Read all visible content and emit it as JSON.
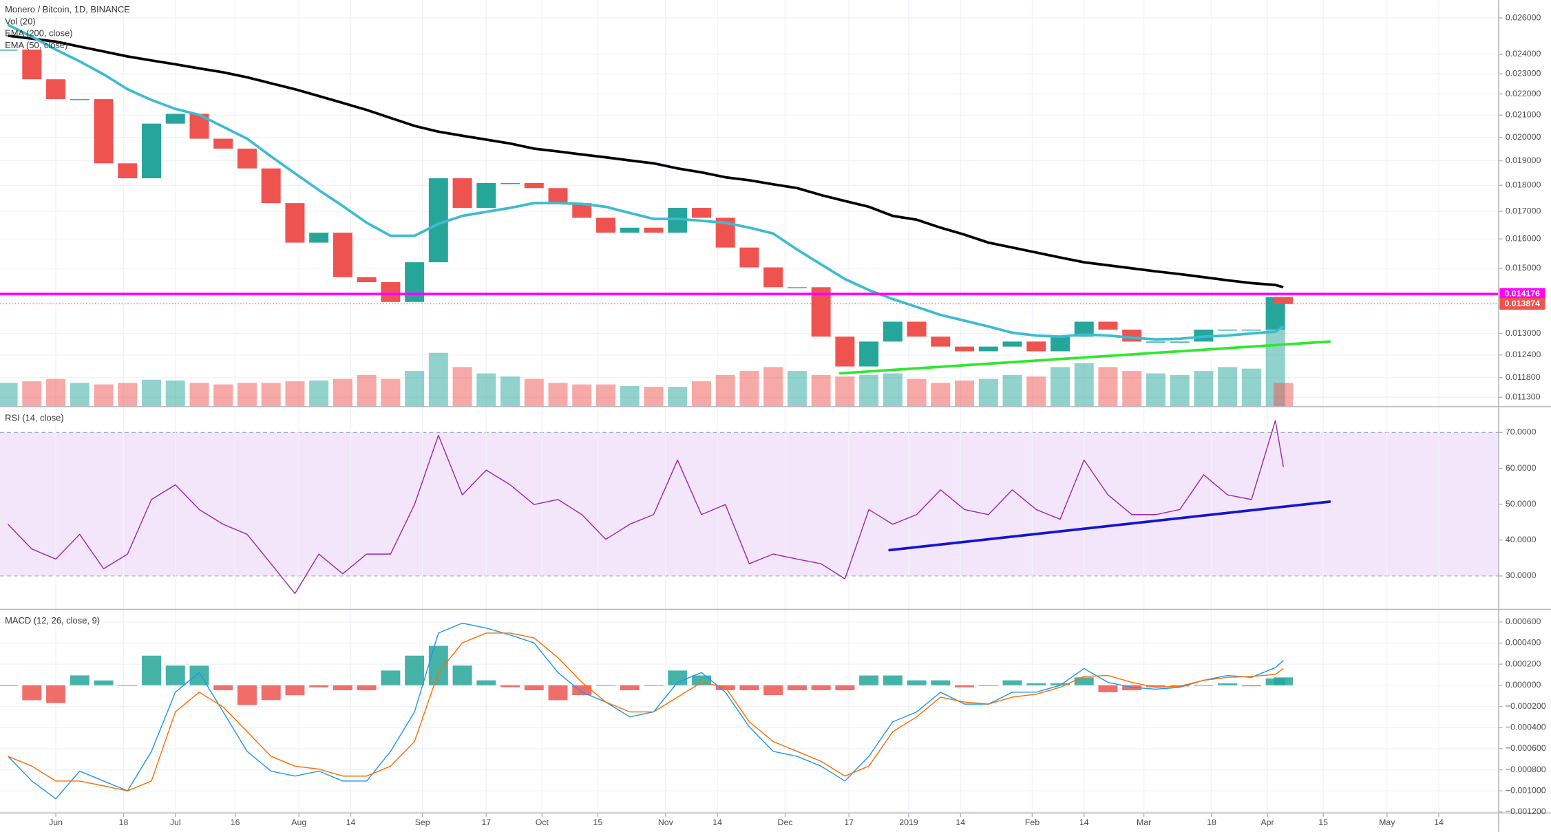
{
  "chart_data": [
    {
      "type": "line",
      "title": "Monero / Bitcoin, 1D, BINANCE",
      "log": true,
      "grid": true,
      "x": [
        -12,
        -6,
        0,
        6,
        12,
        18,
        24,
        30,
        36,
        42,
        48,
        54,
        60,
        66,
        72,
        78,
        84,
        90,
        96,
        102,
        108,
        114,
        120,
        126,
        132,
        138,
        144,
        150,
        156,
        162,
        168,
        174,
        180,
        186,
        192,
        198,
        204,
        210,
        216,
        222,
        228,
        234,
        240,
        246,
        252,
        258,
        264,
        270,
        276,
        282,
        288,
        294,
        300,
        306,
        308
      ],
      "xlim": [
        -14,
        362
      ],
      "ylim": [
        0.01107,
        0.02703
      ],
      "yticks": [
        {
          "value": 0.026,
          "label": "0.026000"
        },
        {
          "value": 0.024,
          "label": "0.024000"
        },
        {
          "value": 0.023,
          "label": "0.023000"
        },
        {
          "value": 0.022,
          "label": "0.022000"
        },
        {
          "value": 0.021,
          "label": "0.021000"
        },
        {
          "value": 0.02,
          "label": "0.020000"
        },
        {
          "value": 0.019,
          "label": "0.019000"
        },
        {
          "value": 0.018,
          "label": "0.018000"
        },
        {
          "value": 0.017,
          "label": "0.017000"
        },
        {
          "value": 0.016,
          "label": "0.016000"
        },
        {
          "value": 0.015,
          "label": "0.015000"
        },
        {
          "value": 0.013,
          "label": "0.013000"
        },
        {
          "value": 0.0124,
          "label": "0.012400"
        },
        {
          "value": 0.0118,
          "label": "0.011800"
        },
        {
          "value": 0.0113,
          "label": "0.011300"
        }
      ],
      "series": [
        {
          "up_color": "#26a69a",
          "down_color": "#ef5350",
          "values": [
            0.02425,
            0.02272,
            0.02175,
            0.02175,
            0.01889,
            0.01828,
            0.02061,
            0.02106,
            0.01994,
            0.01951,
            0.01868,
            0.01731,
            0.01587,
            0.01622,
            0.01471,
            0.01455,
            0.01393,
            0.0152,
            0.01828,
            0.01713,
            0.01809,
            0.01809,
            0.01789,
            0.01731,
            0.01676,
            0.01622,
            0.0164,
            0.01622,
            0.01713,
            0.01676,
            0.0157,
            0.01503,
            0.01439,
            0.01439,
            0.01291,
            0.01209,
            0.01277,
            0.01334,
            0.01291,
            0.01263,
            0.0125,
            0.01263,
            0.01277,
            0.0125,
            0.01291,
            0.01334,
            0.01311,
            0.01277,
            0.01277,
            0.01277,
            0.01311,
            0.01311,
            0.01311,
            0.01408,
            0.01387
          ]
        },
        {
          "name": "EMA (200, close)",
          "color": "#000000",
          "values": [
            0.025,
            0.02484,
            0.02468,
            0.02441,
            0.02415,
            0.02389,
            0.02368,
            0.02348,
            0.02327,
            0.02307,
            0.02282,
            0.02252,
            0.02223,
            0.0219,
            0.02157,
            0.02124,
            0.02087,
            0.02051,
            0.02025,
            0.02007,
            0.0199,
            0.01973,
            0.01951,
            0.01939,
            0.01926,
            0.01914,
            0.01901,
            0.01889,
            0.01868,
            0.01852,
            0.01832,
            0.0182,
            0.01804,
            0.01789,
            0.01762,
            0.01739,
            0.01717,
            0.01683,
            0.01669,
            0.0164,
            0.01615,
            0.01587,
            0.0157,
            0.01553,
            0.01536,
            0.0152,
            0.0151,
            0.015,
            0.0149,
            0.01481,
            0.01471,
            0.01461,
            0.01452,
            0.01446,
            0.01439
          ]
        },
        {
          "name": "EMA (50, close)",
          "color": "#3cbcd0",
          "values": [
            0.02561,
            0.02495,
            0.02425,
            0.02363,
            0.02297,
            0.02223,
            0.02171,
            0.02129,
            0.02101,
            0.02047,
            0.01994,
            0.01918,
            0.01848,
            0.01781,
            0.0172,
            0.01658,
            0.01611,
            0.01611,
            0.01654,
            0.01683,
            0.01698,
            0.01713,
            0.01731,
            0.01731,
            0.01728,
            0.01717,
            0.01694,
            0.01672,
            0.01672,
            0.01665,
            0.01658,
            0.0164,
            0.01619,
            0.01563,
            0.01513,
            0.01465,
            0.0143,
            0.01402,
            0.01378,
            0.01354,
            0.01337,
            0.0132,
            0.01302,
            0.01294,
            0.01291,
            0.01297,
            0.01294,
            0.01288,
            0.01283,
            0.01285,
            0.01291,
            0.01294,
            0.013,
            0.01305,
            0.0132
          ]
        }
      ],
      "volume": {
        "name": "Vol (20)",
        "values": [
          30,
          32,
          35,
          30,
          28,
          30,
          34,
          33,
          30,
          28,
          30,
          30,
          32,
          33,
          35,
          40,
          35,
          45,
          68,
          50,
          42,
          38,
          35,
          30,
          28,
          28,
          26,
          25,
          25,
          32,
          40,
          45,
          50,
          45,
          40,
          38,
          40,
          42,
          35,
          30,
          33,
          35,
          40,
          38,
          50,
          55,
          50,
          45,
          42,
          40,
          45,
          50,
          48,
          100,
          30
        ]
      },
      "hlines": [
        {
          "value": 0.014176,
          "label": "0.014176",
          "color": "#ff00ff",
          "style": "solid"
        },
        {
          "value": 0.013874,
          "label": "0.013874",
          "color": "#ef5350",
          "style": "dotted"
        }
      ],
      "trendlines": [
        {
          "x": [
            196.8,
            319.6
          ],
          "values": [
            0.01191,
            0.01277
          ],
          "color": "#2ee82e"
        }
      ]
    },
    {
      "type": "line",
      "title": "RSI (14, close)",
      "grid": true,
      "x": [
        -12,
        -6,
        0,
        6,
        12,
        18,
        24,
        30,
        36,
        42,
        48,
        54,
        60,
        66,
        72,
        78,
        84,
        90,
        96,
        102,
        108,
        114,
        120,
        126,
        132,
        138,
        144,
        150,
        156,
        162,
        168,
        174,
        180,
        186,
        192,
        198,
        204,
        210,
        216,
        222,
        228,
        234,
        240,
        246,
        252,
        258,
        264,
        270,
        276,
        282,
        288,
        294,
        300,
        306,
        308
      ],
      "xlim": [
        -14,
        362
      ],
      "ylim": [
        20.7,
        77.2
      ],
      "yticks": [
        {
          "value": 30,
          "label": "30.0000"
        },
        {
          "value": 40,
          "label": "40.0000"
        },
        {
          "value": 50,
          "label": "50.0000"
        },
        {
          "value": 60,
          "label": "60.0000"
        },
        {
          "value": 70,
          "label": "70.0000"
        }
      ],
      "band": {
        "range": [
          30,
          70
        ],
        "color": "#f3e6fb"
      },
      "series": [
        {
          "color": "#9c27b0",
          "values": [
            44.4,
            37.5,
            34.7,
            41.6,
            32.0,
            36.1,
            51.3,
            55.4,
            48.5,
            44.4,
            41.6,
            33.4,
            25.1,
            36.1,
            30.6,
            36.1,
            36.1,
            49.9,
            69.2,
            52.6,
            59.5,
            55.4,
            49.9,
            51.3,
            47.1,
            40.2,
            44.4,
            47.1,
            62.3,
            47.1,
            49.9,
            33.4,
            36.1,
            34.7,
            33.4,
            29.2,
            48.5,
            44.4,
            47.1,
            54.0,
            48.5,
            47.1,
            54.0,
            48.5,
            45.8,
            62.3,
            52.6,
            47.1,
            47.1,
            48.5,
            58.2,
            52.6,
            51.3,
            73.3,
            60.4
          ]
        }
      ],
      "trendlines": [
        {
          "x": [
            209.2,
            319.6
          ],
          "values": [
            37.2,
            50.7
          ],
          "color": "#1515d0"
        }
      ]
    },
    {
      "type": "line",
      "title": "MACD (12, 26, close, 9)",
      "grid": true,
      "x": [
        -12,
        -6,
        0,
        6,
        12,
        18,
        24,
        30,
        36,
        42,
        48,
        54,
        60,
        66,
        72,
        78,
        84,
        90,
        96,
        102,
        108,
        114,
        120,
        126,
        132,
        138,
        144,
        150,
        156,
        162,
        168,
        174,
        180,
        186,
        192,
        198,
        204,
        210,
        216,
        222,
        228,
        234,
        240,
        246,
        252,
        258,
        264,
        270,
        276,
        282,
        288,
        294,
        300,
        306,
        308
      ],
      "xlim": [
        -14,
        362
      ],
      "xticks": [
        {
          "value": 0,
          "label": "Jun"
        },
        {
          "value": 17,
          "label": "18"
        },
        {
          "value": 30,
          "label": "Jul"
        },
        {
          "value": 45,
          "label": "16"
        },
        {
          "value": 61,
          "label": "Aug"
        },
        {
          "value": 74,
          "label": "14"
        },
        {
          "value": 92,
          "label": "Sep"
        },
        {
          "value": 108,
          "label": "17"
        },
        {
          "value": 122,
          "label": "Oct"
        },
        {
          "value": 136,
          "label": "15"
        },
        {
          "value": 153,
          "label": "Nov"
        },
        {
          "value": 166,
          "label": "14"
        },
        {
          "value": 183,
          "label": "Dec"
        },
        {
          "value": 199,
          "label": "17"
        },
        {
          "value": 214,
          "label": "2019"
        },
        {
          "value": 227,
          "label": "14"
        },
        {
          "value": 245,
          "label": "Feb"
        },
        {
          "value": 258,
          "label": "14"
        },
        {
          "value": 273,
          "label": "Mar"
        },
        {
          "value": 290,
          "label": "18"
        },
        {
          "value": 304,
          "label": "Apr"
        },
        {
          "value": 318,
          "label": "15"
        },
        {
          "value": 334,
          "label": "May"
        },
        {
          "value": 347,
          "label": "14"
        }
      ],
      "ylim": [
        -0.00121,
        0.00072
      ],
      "yticks": [
        {
          "value": 0.0006,
          "label": "0.000600"
        },
        {
          "value": 0.0004,
          "label": "0.000400"
        },
        {
          "value": 0.0002,
          "label": "0.000200"
        },
        {
          "value": 0,
          "label": "0.000000"
        },
        {
          "value": -0.0002,
          "label": "−0.000200"
        },
        {
          "value": -0.0004,
          "label": "−0.000400"
        },
        {
          "value": -0.0006,
          "label": "−0.000600"
        },
        {
          "value": -0.0008,
          "label": "−0.000800"
        },
        {
          "value": -0.001,
          "label": "−0.001000"
        },
        {
          "value": -0.0012,
          "label": "−0.001200"
        }
      ],
      "histogram": {
        "up_color": "#26a69a",
        "down_color": "#ef5350",
        "values": [
          0,
          -0.000141,
          -0.000168,
          9.4e-05,
          4.6e-05,
          0,
          0.000281,
          0.000187,
          0.000186,
          -4.6e-05,
          -0.000187,
          -0.00014,
          -9.4e-05,
          -1.9e-05,
          -4.7e-05,
          -4.7e-05,
          0.00014,
          0.000281,
          0.000374,
          0.000187,
          4.7e-05,
          -1.8e-05,
          -4.7e-05,
          -0.000141,
          -9.3e-05,
          0,
          -4.7e-05,
          0,
          0.00014,
          9.3e-05,
          -4.6e-05,
          -4.7e-05,
          -9.3e-05,
          -4.7e-05,
          -4.6e-05,
          -4.7e-05,
          9.3e-05,
          9.3e-05,
          4.7e-05,
          4.7e-05,
          -1.9e-05,
          0,
          4.7e-05,
          1.9e-05,
          1.9e-05,
          7.5e-05,
          -6.5e-05,
          -4.7e-05,
          -1.8e-05,
          -1e-05,
          0,
          1.8e-05,
          -9e-06,
          6.5e-05,
          7.5e-05
        ]
      },
      "series": [
        {
          "color": "#2196f3",
          "values": [
            -0.000673,
            -0.000907,
            -0.001075,
            -0.000813,
            -0.000907,
            -0.001,
            -0.000626,
            -6.5e-05,
            0.000121,
            -0.000252,
            -0.000626,
            -0.000813,
            -0.00086,
            -0.000813,
            -0.000907,
            -0.000907,
            -0.000626,
            -0.000252,
            0.000495,
            0.000589,
            0.000542,
            0.000477,
            0.000402,
            0.000121,
            -6.5e-05,
            -0.000159,
            -0.000299,
            -0.000252,
            2.8e-05,
            0.000121,
            -6.5e-05,
            -0.000393,
            -0.000626,
            -0.000673,
            -0.000766,
            -0.000907,
            -0.000673,
            -0.000346,
            -0.000252,
            -6.5e-05,
            -0.000178,
            -0.000178,
            -6.5e-05,
            -6.5e-05,
            0,
            0.000159,
            2.8e-05,
            -1.9e-05,
            -3.7e-05,
            -1.9e-05,
            4.7e-05,
            9.3e-05,
            7.5e-05,
            0.000168,
            0.000234
          ]
        },
        {
          "color": "#ff6d00",
          "values": [
            -0.000673,
            -0.000766,
            -0.000907,
            -0.000907,
            -0.000953,
            -0.001,
            -0.000907,
            -0.000252,
            -6.5e-05,
            -0.000206,
            -0.000439,
            -0.000673,
            -0.000766,
            -0.000794,
            -0.00086,
            -0.00086,
            -0.000766,
            -0.000533,
            0.000121,
            0.000402,
            0.000495,
            0.000495,
            0.000449,
            0.000262,
            2.8e-05,
            -0.000159,
            -0.000252,
            -0.000252,
            -0.000112,
            2.8e-05,
            -1.9e-05,
            -0.000346,
            -0.000533,
            -0.000626,
            -0.00072,
            -0.00086,
            -0.000766,
            -0.000439,
            -0.000299,
            -0.000112,
            -0.000159,
            -0.000178,
            -0.000112,
            -8.4e-05,
            -1.9e-05,
            8.4e-05,
            9.3e-05,
            2.8e-05,
            -1.9e-05,
            -9e-06,
            4.7e-05,
            7.5e-05,
            8.4e-05,
            0.000103,
            0.000159
          ]
        }
      ]
    }
  ]
}
